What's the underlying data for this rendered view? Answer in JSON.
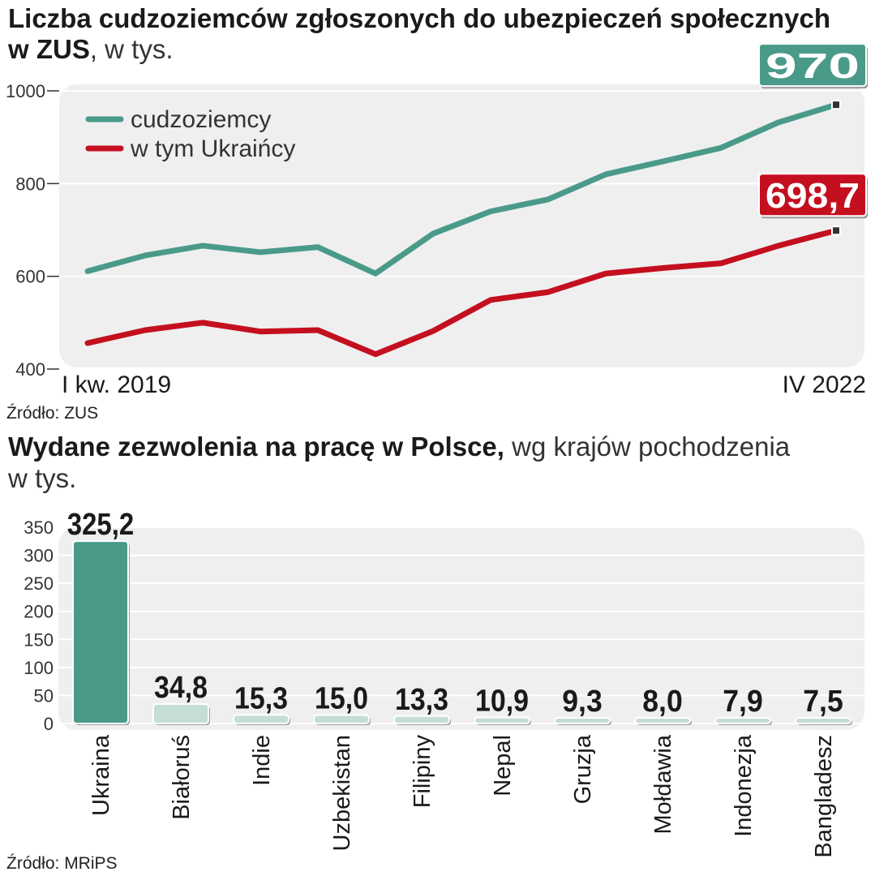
{
  "chart_data": [
    {
      "type": "line",
      "title_bold_line1": "Liczba cudzoziemców zgłoszonych do ubezpieczeń społecznych",
      "title_bold_line2": "w ZUS",
      "title_light": ", w tys.",
      "ylim": [
        400,
        1000
      ],
      "y_ticks": [
        "1000",
        "800",
        "600",
        "400"
      ],
      "x_first_label": "I kw. 2019",
      "x_last_label": "IV 2022",
      "legend_position": "top-left",
      "series": [
        {
          "name": "cudzoziemcy",
          "color": "#4a9a8a",
          "values": [
            611,
            645,
            666,
            652,
            663,
            606,
            692,
            740,
            766,
            820,
            848,
            877,
            932,
            970
          ],
          "end_label": "970"
        },
        {
          "name": "w tym Ukraińcy",
          "color": "#c40f1f",
          "values": [
            456,
            484,
            500,
            481,
            484,
            432,
            482,
            549,
            566,
            606,
            618,
            628,
            666,
            698.7
          ],
          "end_label": "698,7"
        }
      ],
      "source": "Źródło: ZUS"
    },
    {
      "type": "bar",
      "title_bold": "Wydane zezwolenia na pracę w Polsce,",
      "title_light_line1": " wg krajów pochodzenia",
      "title_light_line2": "w tys.",
      "ylim": [
        0,
        350
      ],
      "y_ticks": [
        "350",
        "300",
        "250",
        "200",
        "150",
        "100",
        "50",
        "0"
      ],
      "categories": [
        "Ukraina",
        "Białoruś",
        "Indie",
        "Uzbekistan",
        "Filipiny",
        "Nepal",
        "Gruzja",
        "Mołdawia",
        "Indonezja",
        "Bangladesz"
      ],
      "values": [
        325.2,
        34.8,
        15.3,
        15.0,
        13.3,
        10.9,
        9.3,
        8.0,
        7.9,
        7.5
      ],
      "value_labels": [
        "325,2",
        "34,8",
        "15,3",
        "15,0",
        "13,3",
        "10,9",
        "9,3",
        "8,0",
        "7,9",
        "7,5"
      ],
      "colors": {
        "highlight": "#4a9a8a",
        "light": "#c6ddd6"
      },
      "source": "Źródło: MRiPS"
    }
  ]
}
